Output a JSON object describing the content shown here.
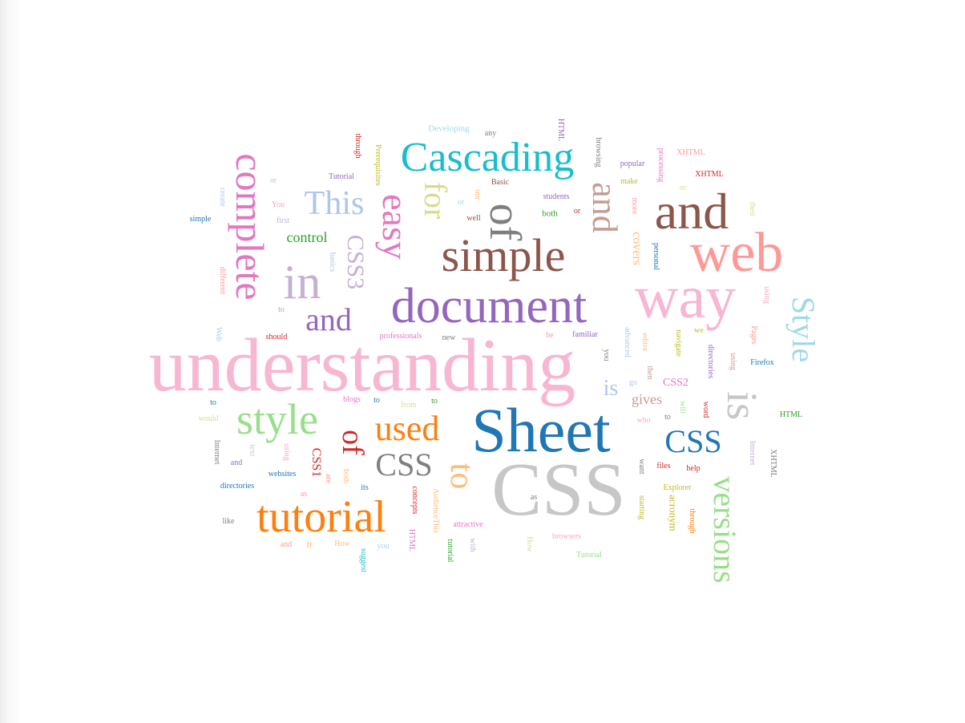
{
  "colors": {
    "pink": "#f7b6d2",
    "lightpink": "#f4a8c4",
    "magenta": "#e377c2",
    "blue": "#1f77b4",
    "lightblue": "#aec7e8",
    "skyblue": "#9edae5",
    "cyan": "#17becf",
    "purple": "#9467bd",
    "lavender": "#c5b0d5",
    "brown": "#8c564b",
    "tan": "#c49c94",
    "orange": "#ff7f0e",
    "peach": "#ffbb78",
    "red": "#d62728",
    "salmon": "#ff9896",
    "green": "#2ca02c",
    "lightgreen": "#98df8a",
    "olive": "#bcbd22",
    "khaki": "#dbdb8d",
    "gray": "#7f7f7f",
    "silver": "#c7c7c7"
  },
  "words": [
    {
      "text": "understanding",
      "color": "pink"
    },
    {
      "text": "CSS",
      "color": "silver"
    },
    {
      "text": "Sheet",
      "color": "blue"
    },
    {
      "text": "way",
      "color": "pink"
    },
    {
      "text": "web",
      "color": "salmon"
    },
    {
      "text": "and",
      "color": "brown"
    },
    {
      "text": "document",
      "color": "purple"
    },
    {
      "text": "simple",
      "color": "brown"
    },
    {
      "text": "Cascading",
      "color": "cyan"
    },
    {
      "text": "complete",
      "color": "magenta"
    },
    {
      "text": "tutorial",
      "color": "orange"
    },
    {
      "text": "style",
      "color": "lightgreen"
    },
    {
      "text": "is",
      "color": "silver"
    },
    {
      "text": "versions",
      "color": "lightgreen"
    },
    {
      "text": "Style",
      "color": "skyblue"
    },
    {
      "text": "in",
      "color": "lavender"
    },
    {
      "text": "easy",
      "color": "magenta"
    },
    {
      "text": "of",
      "color": "gray"
    },
    {
      "text": "This",
      "color": "lightblue"
    },
    {
      "text": "for",
      "color": "khaki"
    },
    {
      "text": "and",
      "color": "tan"
    },
    {
      "text": "and",
      "color": "purple"
    },
    {
      "text": "used",
      "color": "orange"
    },
    {
      "text": "to",
      "color": "peach"
    },
    {
      "text": "CSS",
      "color": "gray"
    },
    {
      "text": "CSS",
      "color": "blue"
    },
    {
      "text": "of",
      "color": "red"
    },
    {
      "text": "CSS3",
      "color": "lavender"
    },
    {
      "text": "control",
      "color": "green"
    },
    {
      "text": "is",
      "color": "lightblue"
    },
    {
      "text": "gives",
      "color": "tan"
    },
    {
      "text": "CSS2",
      "color": "magenta"
    },
    {
      "text": "covers",
      "color": "peach"
    },
    {
      "text": "CSS1",
      "color": "red"
    },
    {
      "text": "acronym",
      "color": "olive"
    },
    {
      "text": "Developing",
      "color": "skyblue"
    },
    {
      "text": "any",
      "color": "gray"
    },
    {
      "text": "HTML",
      "color": "purple"
    },
    {
      "text": "browsing",
      "color": "gray"
    },
    {
      "text": "popular",
      "color": "purple"
    },
    {
      "text": "processing",
      "color": "magenta"
    },
    {
      "text": "XHTML",
      "color": "salmon"
    },
    {
      "text": "XHTML",
      "color": "red"
    },
    {
      "text": "through",
      "color": "red"
    },
    {
      "text": "Prerequisites",
      "color": "olive"
    },
    {
      "text": "Tutorial",
      "color": "purple"
    },
    {
      "text": "Basic",
      "color": "brown"
    },
    {
      "text": "our",
      "color": "peach"
    },
    {
      "text": "students",
      "color": "purple"
    },
    {
      "text": "both",
      "color": "green"
    },
    {
      "text": "or",
      "color": "red"
    },
    {
      "text": "make",
      "color": "olive"
    },
    {
      "text": "more",
      "color": "salmon"
    },
    {
      "text": "or",
      "color": "khaki"
    },
    {
      "text": "their",
      "color": "khaki"
    },
    {
      "text": "or",
      "color": "lavender"
    },
    {
      "text": "well",
      "color": "brown"
    },
    {
      "text": "or",
      "color": "skyblue"
    },
    {
      "text": "create",
      "color": "lightblue"
    },
    {
      "text": "You",
      "color": "lightpink"
    },
    {
      "text": "first",
      "color": "lavender"
    },
    {
      "text": "simple",
      "color": "blue"
    },
    {
      "text": "basics",
      "color": "lightblue"
    },
    {
      "text": "personal",
      "color": "blue"
    },
    {
      "text": "different",
      "color": "salmon"
    },
    {
      "text": "to",
      "color": "tan"
    },
    {
      "text": "using",
      "color": "lightpink"
    },
    {
      "text": "Web",
      "color": "lightblue"
    },
    {
      "text": "should",
      "color": "red"
    },
    {
      "text": "professionals",
      "color": "magenta"
    },
    {
      "text": "new",
      "color": "gray"
    },
    {
      "text": "be",
      "color": "salmon"
    },
    {
      "text": "familiar",
      "color": "purple"
    },
    {
      "text": "advanced",
      "color": "lightblue"
    },
    {
      "text": "editor",
      "color": "peach"
    },
    {
      "text": "navigate",
      "color": "olive"
    },
    {
      "text": "we",
      "color": "olive"
    },
    {
      "text": "Pages",
      "color": "salmon"
    },
    {
      "text": "you",
      "color": "gray"
    },
    {
      "text": "go",
      "color": "lightblue"
    },
    {
      "text": "then",
      "color": "tan"
    },
    {
      "text": "directories",
      "color": "purple"
    },
    {
      "text": "using",
      "color": "tan"
    },
    {
      "text": "Firefox",
      "color": "blue"
    },
    {
      "text": "to",
      "color": "blue"
    },
    {
      "text": "blogs",
      "color": "magenta"
    },
    {
      "text": "to",
      "color": "blue"
    },
    {
      "text": "from",
      "color": "khaki"
    },
    {
      "text": "to",
      "color": "green"
    },
    {
      "text": "will",
      "color": "lightgreen"
    },
    {
      "text": "word",
      "color": "red"
    },
    {
      "text": "HTML",
      "color": "green"
    },
    {
      "text": "would",
      "color": "khaki"
    },
    {
      "text": "who",
      "color": "lightpink"
    },
    {
      "text": "to",
      "color": "gray"
    },
    {
      "text": "Internet",
      "color": "gray"
    },
    {
      "text": "text",
      "color": "silver"
    },
    {
      "text": "and",
      "color": "purple"
    },
    {
      "text": "using",
      "color": "lightpink"
    },
    {
      "text": "websites",
      "color": "blue"
    },
    {
      "text": "are",
      "color": "salmon"
    },
    {
      "text": "both",
      "color": "peach"
    },
    {
      "text": "its",
      "color": "blue"
    },
    {
      "text": "want",
      "color": "gray"
    },
    {
      "text": "files",
      "color": "red"
    },
    {
      "text": "help",
      "color": "red"
    },
    {
      "text": "Internet",
      "color": "lavender"
    },
    {
      "text": "XHTML",
      "color": "gray"
    },
    {
      "text": "directories",
      "color": "blue"
    },
    {
      "text": "as",
      "color": "salmon"
    },
    {
      "text": "concepts",
      "color": "red"
    },
    {
      "text": "AudienceThis",
      "color": "peach"
    },
    {
      "text": "as",
      "color": "gray"
    },
    {
      "text": "starting",
      "color": "olive"
    },
    {
      "text": "Explorer",
      "color": "olive"
    },
    {
      "text": "through",
      "color": "orange"
    },
    {
      "text": "like",
      "color": "gray"
    },
    {
      "text": "and",
      "color": "salmon"
    },
    {
      "text": "If",
      "color": "peach"
    },
    {
      "text": "How",
      "color": "peach"
    },
    {
      "text": "suggest",
      "color": "cyan"
    },
    {
      "text": "HTML",
      "color": "magenta"
    },
    {
      "text": "you",
      "color": "skyblue"
    },
    {
      "text": "tutorial",
      "color": "green"
    },
    {
      "text": "attractive",
      "color": "magenta"
    },
    {
      "text": "with",
      "color": "lavender"
    },
    {
      "text": "How",
      "color": "khaki"
    },
    {
      "text": "browsers",
      "color": "lightpink"
    },
    {
      "text": "Tutorial",
      "color": "lightgreen"
    }
  ]
}
